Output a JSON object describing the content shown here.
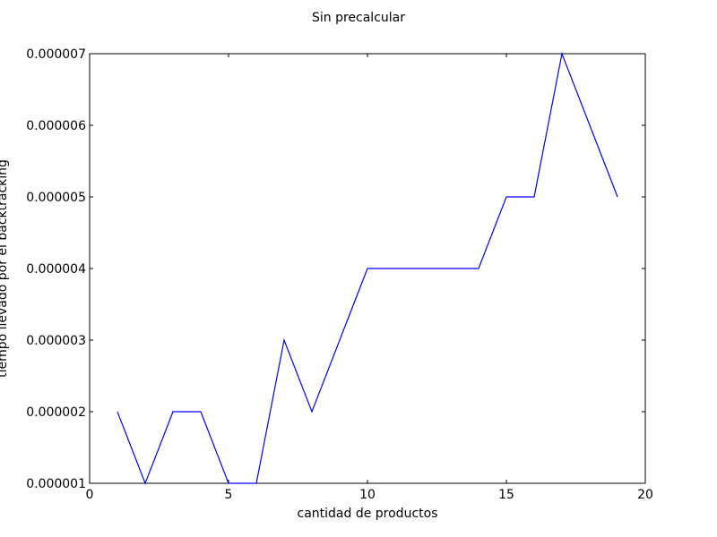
{
  "chart_data": {
    "type": "line",
    "title": "Sin precalcular",
    "xlabel": "cantidad de productos",
    "ylabel": "tiempo llevado por el backtracking",
    "xlim": [
      0,
      20
    ],
    "ylim": [
      1e-06,
      7e-06
    ],
    "xticks": [
      0,
      5,
      10,
      15,
      20
    ],
    "xtick_labels": [
      "0",
      "5",
      "10",
      "15",
      "20"
    ],
    "yticks": [
      1e-06,
      2e-06,
      3e-06,
      4e-06,
      5e-06,
      6e-06,
      7e-06
    ],
    "ytick_labels": [
      "0.000001",
      "0.000002",
      "0.000003",
      "0.000004",
      "0.000005",
      "0.000006",
      "0.000007"
    ],
    "grid": false,
    "line_color": "#0000ff",
    "series": [
      {
        "x": [
          1,
          2,
          3,
          4,
          5,
          6,
          7,
          8,
          9,
          10,
          11,
          12,
          13,
          14,
          15,
          16,
          17,
          18,
          19
        ],
        "values": [
          2e-06,
          1e-06,
          2e-06,
          2e-06,
          1e-06,
          1e-06,
          3e-06,
          2e-06,
          3e-06,
          4e-06,
          4e-06,
          4e-06,
          4e-06,
          4e-06,
          5e-06,
          5e-06,
          7e-06,
          6e-06,
          5e-06
        ]
      }
    ]
  }
}
